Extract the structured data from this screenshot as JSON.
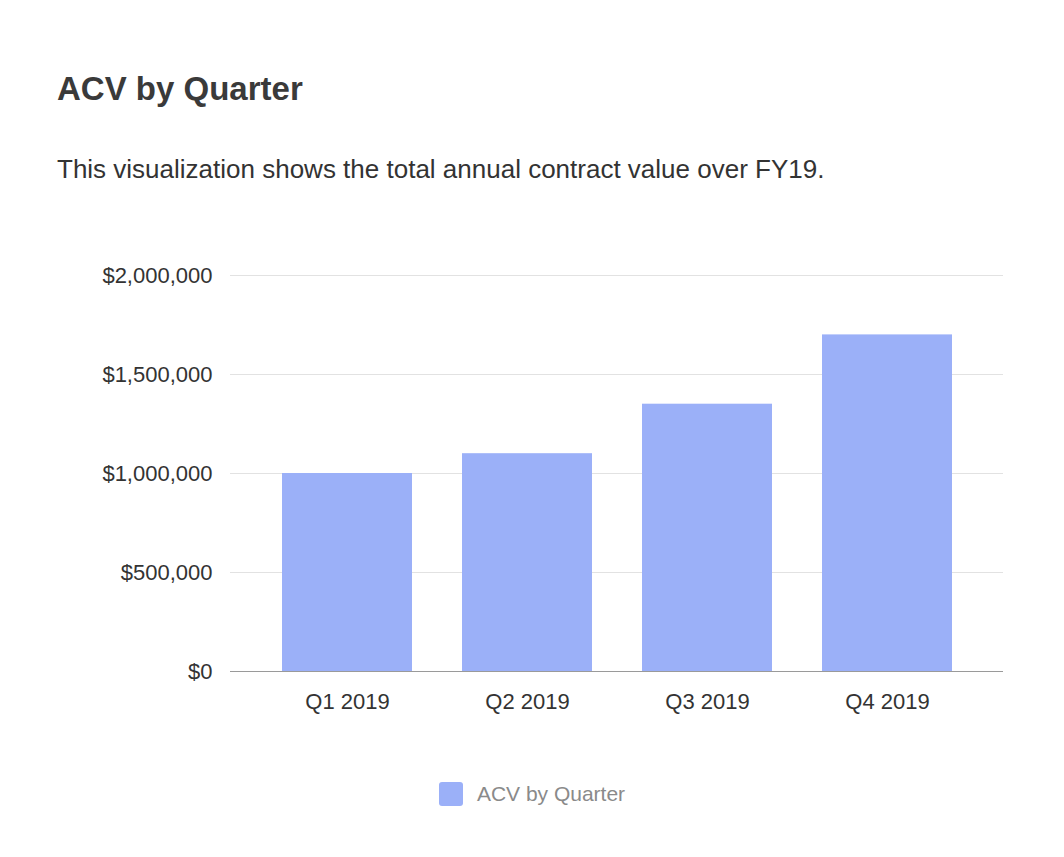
{
  "chart_data": {
    "type": "bar",
    "title": "ACV by Quarter",
    "subtitle": "This visualization shows the total annual contract value over FY19.",
    "categories": [
      "Q1 2019",
      "Q2 2019",
      "Q3 2019",
      "Q4 2019"
    ],
    "series": [
      {
        "name": "ACV by Quarter",
        "color": "#9bb0f8",
        "values": [
          1000000,
          1100000,
          1350000,
          1700000
        ]
      }
    ],
    "ylim": [
      0,
      2000000
    ],
    "yticks": [
      {
        "value": 0,
        "label": "$0"
      },
      {
        "value": 500000,
        "label": "$500,000"
      },
      {
        "value": 1000000,
        "label": "$1,000,000"
      },
      {
        "value": 1500000,
        "label": "$1,500,000"
      },
      {
        "value": 2000000,
        "label": "$2,000,000"
      }
    ],
    "grid": true,
    "legend": "bottom"
  }
}
